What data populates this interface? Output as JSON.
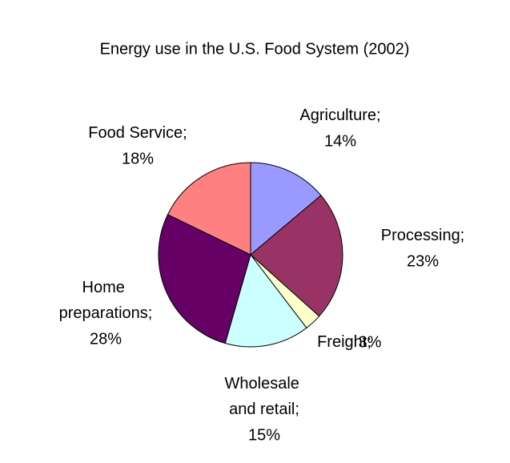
{
  "chart_data": {
    "type": "pie",
    "title": "Energy use in the U.S. Food System (2002)",
    "categories": [
      "Agriculture;",
      "Processing;",
      "Freight;",
      "Wholesale and retail;",
      "Home preparations;",
      "Food Service;"
    ],
    "values": [
      14,
      23,
      3,
      15,
      28,
      18
    ],
    "value_labels": [
      "14%",
      "23%",
      "3%",
      "15%",
      "28%",
      "18%"
    ],
    "colors": [
      "#9999ff",
      "#993366",
      "#ffffcc",
      "#ccffff",
      "#660066",
      "#ff8080"
    ]
  }
}
